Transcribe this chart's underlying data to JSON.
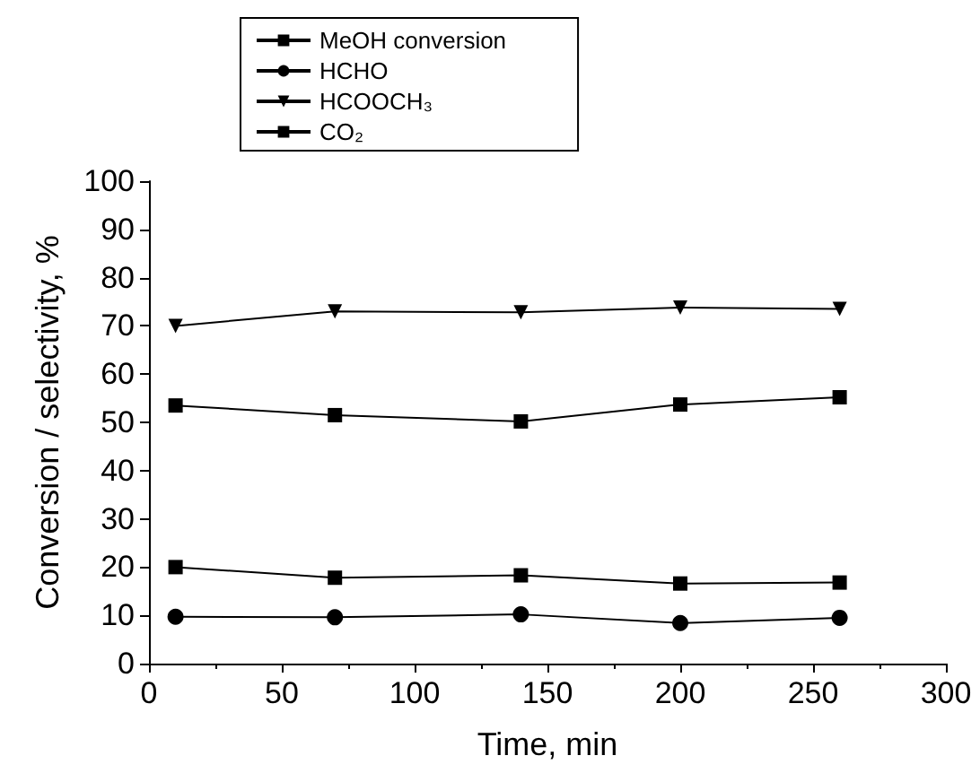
{
  "chart_data": {
    "type": "line",
    "xlabel": "Time, min",
    "ylabel": "Conversion / selectivity, %",
    "x": [
      10,
      70,
      140,
      200,
      260
    ],
    "series": [
      {
        "name": "MeOH conversion",
        "color": "#000000",
        "marker": "square",
        "values": [
          53.5,
          51.5,
          50.2,
          53.7,
          55.2
        ]
      },
      {
        "name": "HCHO",
        "color": "#000000",
        "marker": "circle",
        "values": [
          9.7,
          9.6,
          10.2,
          8.4,
          9.5
        ]
      },
      {
        "name": "HCOOCH₃",
        "color": "#000000",
        "marker": "triangle",
        "values": [
          70,
          73,
          72.8,
          73.8,
          73.5
        ]
      },
      {
        "name": "CO₂",
        "color": "#000000",
        "marker": "square",
        "values": [
          20,
          17.8,
          18.3,
          16.6,
          16.8
        ]
      }
    ],
    "xlim": [
      0,
      300
    ],
    "xticks": [
      0,
      50,
      100,
      150,
      200,
      250,
      300
    ],
    "ylim": [
      0,
      100
    ],
    "yticks": [
      0,
      10,
      20,
      30,
      40,
      50,
      60,
      70,
      80,
      90,
      100
    ],
    "grid": false,
    "legend": "top left",
    "line_style": "solid"
  }
}
